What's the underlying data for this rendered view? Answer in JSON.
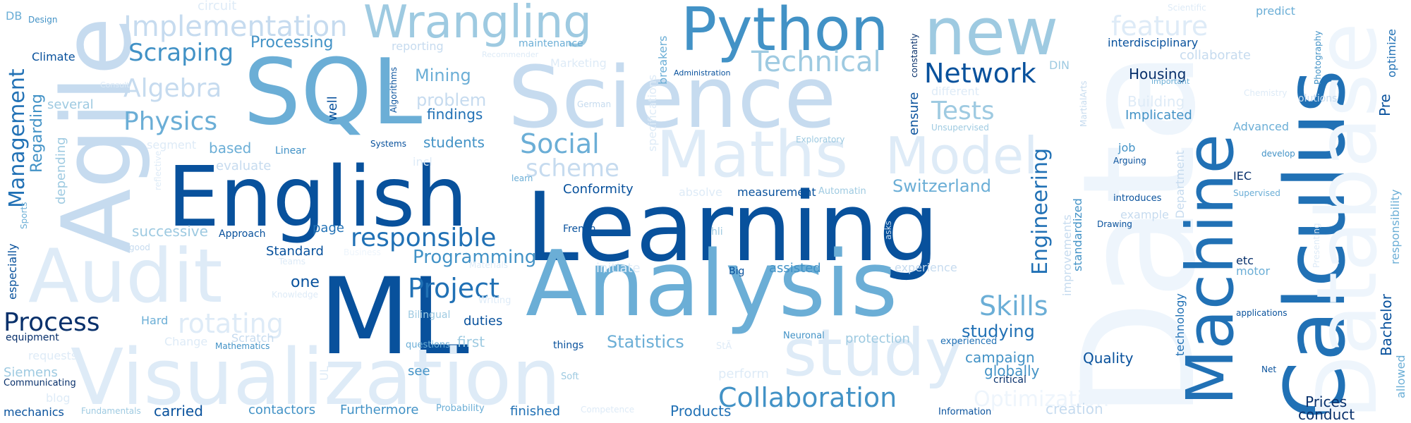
{
  "words": {
    "learning": "Learning",
    "data": "Data",
    "ml": "ML",
    "english": "English",
    "sql": "SQL",
    "science": "Science",
    "analysis": "Analysis",
    "python": "Python",
    "new": "new",
    "visualization": "Visualization",
    "agile": "Agile",
    "audit": "Audit",
    "calculus": "Calculus",
    "machine": "Machine",
    "database": "Database",
    "maths": "Maths",
    "model": "Model",
    "study": "study",
    "wrangling": "Wrangling",
    "collaboration": "Collaboration",
    "implementation": "Implementation",
    "technical": "Technical",
    "network": "Network",
    "engineering": "Engineering",
    "tests": "Tests",
    "skills": "Skills",
    "process": "Process",
    "management": "Management",
    "responsible": "responsible",
    "project": "Project",
    "social": "Social",
    "scheme": "scheme",
    "scraping": "Scraping",
    "algebra": "Algebra",
    "physics": "Physics",
    "feature": "feature",
    "rotating": "rotating",
    "statistics": "Statistics",
    "switzerland": "Switzerland",
    "optimization": "Optimization",
    "programming": "Programming",
    "mining": "Mining",
    "processing": "Processing",
    "regarding": "Regarding",
    "problem": "problem",
    "findings": "findings",
    "students": "students",
    "studying": "studying",
    "products": "Products",
    "contactors": "contactors",
    "furthermore": "Furthermore",
    "carried": "carried",
    "finished": "finished",
    "mechanics": "mechanics",
    "prices": "Prices",
    "conduct": "conduct",
    "bachelor": "Bachelor",
    "pre": "Pre",
    "optimize": "optimize",
    "responsibility": "responsibility",
    "allowed": "allowed",
    "quality": "Quality",
    "housing": "Housing",
    "building": "Building",
    "implicated": "Implicated",
    "advanced": "Advanced",
    "interdisciplinary": "interdisciplinary",
    "predict": "predict",
    "campaign": "campaign",
    "globally": "globally",
    "critical": "critical",
    "information": "Information",
    "creation": "creation",
    "protection": "protection",
    "experienced": "experienced",
    "assisted": "assisted",
    "experience": "experience",
    "big": "Big",
    "measurement": "measurement",
    "automatin": "Automatin",
    "conformity": "Conformity",
    "french": "French",
    "successive": "successive",
    "approach": "Approach",
    "page": "page",
    "standard": "Standard",
    "one": "one",
    "bilingual": "Bilingual",
    "duties": "duties",
    "first": "first",
    "questions": "questions",
    "things": "things",
    "see": "see",
    "soft": "Soft",
    "perform": "perform",
    "probability": "Probability",
    "competence": "Competence",
    "fundamentals": "Fundamentals",
    "communicating": "Communicating",
    "siemens": "Siemens",
    "equipment": "equipment",
    "especially": "especially",
    "sports": "Sports",
    "hard": "Hard",
    "change": "Change",
    "scratch": "Scratch",
    "mathematics": "Mathematics",
    "climate": "Climate",
    "several": "several",
    "design": "Design",
    "db": "DB",
    "circuit": "circuit",
    "reporting": "reporting",
    "maintenance": "maintenance",
    "marketing": "Marketing",
    "recommender": "Recommender",
    "german": "German",
    "systems": "Systems",
    "linear": "Linear",
    "based": "based",
    "evaluate": "evaluate",
    "segment": "segment",
    "depending": "depending",
    "reflective": "reflective",
    "good": "good",
    "well": "well",
    "algorithms": "Algorithms",
    "breakers": "breakers",
    "specifications": "specifications",
    "administration": "Administration",
    "constantly": "constantly",
    "ensure": "ensure",
    "unsupervised": "Unsupervised",
    "different": "different",
    "exploratory": "Exploratory",
    "din": "DIN",
    "martialarts": "MartialArts",
    "job": "job",
    "arguing": "Arguing",
    "introduces": "introduces",
    "drawing": "Drawing",
    "example": "example",
    "standardized": "standardized",
    "improvements": "improvements",
    "department": "Department",
    "technology": "technology",
    "iec": "IEC",
    "supervised": "Supervised",
    "develop": "develop",
    "etc": "etc",
    "motor": "motor",
    "applications": "applications",
    "net": "Net",
    "chemistry": "Chemistry",
    "solutions": "olutions",
    "photography": "Photography",
    "important": "important",
    "scientific": "Scientific",
    "presenting": "Presenting",
    "initiate": "initiate",
    "asks": "asks",
    "neuronal": "Neuronal",
    "absolve": "absolve",
    "learn": "learn",
    "incl": "incl",
    "blog": "blog",
    "requests": "requests",
    "teams": "Teams",
    "knowledge": "Knowledge",
    "materials": "Materials",
    "writing": "Writing",
    "business": "Business",
    "consult": "Consult",
    "collaborate": "collaborate",
    "hli": "hli",
    "sta": "StÃ",
    "ul": "UL"
  }
}
